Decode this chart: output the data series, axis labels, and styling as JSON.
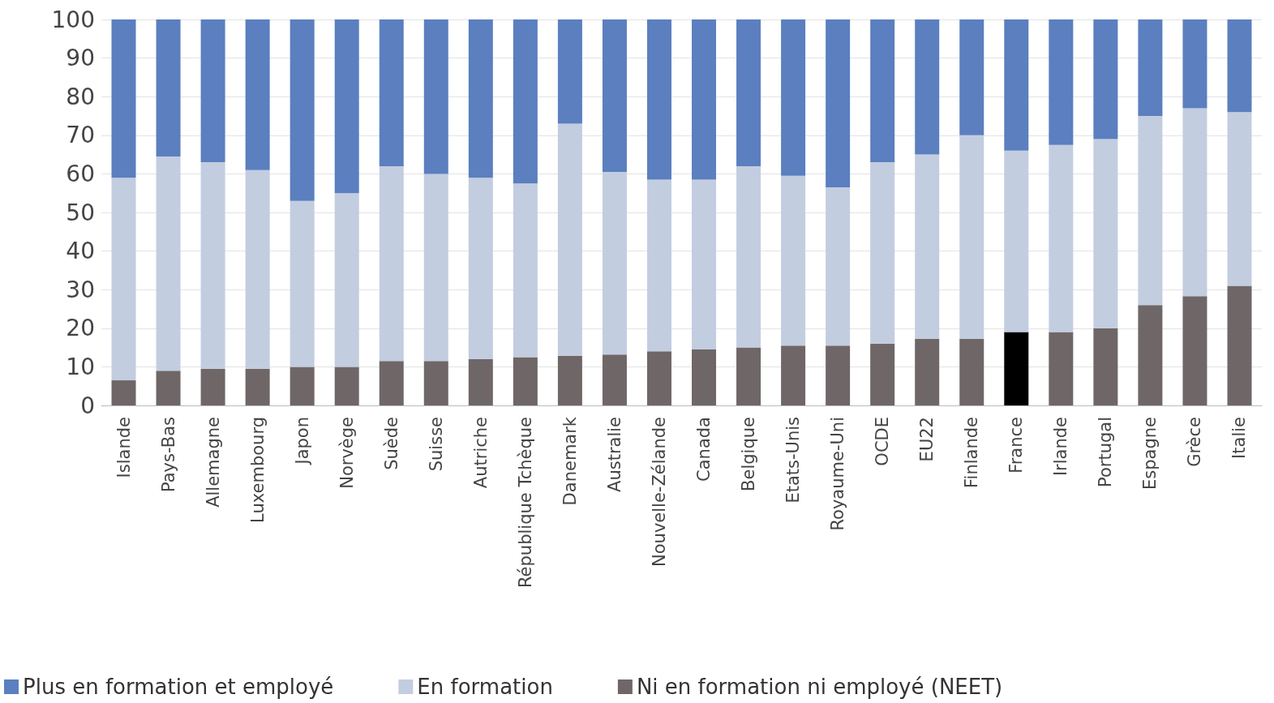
{
  "chart_data": {
    "type": "bar",
    "stacked": true,
    "categories": [
      "Islande",
      "Pays-Bas",
      "Allemagne",
      "Luxembourg",
      "Japon",
      "Norvège",
      "Suède",
      "Suisse",
      "Autriche",
      "République Tchèque",
      "Danemark",
      "Australie",
      "Nouvelle-Zélande",
      "Canada",
      "Belgique",
      "Etats-Unis",
      "Royaume-Uni",
      "OCDE",
      "EU22",
      "Finlande",
      "France",
      "Irlande",
      "Portugal",
      "Espagne",
      "Grèce",
      "Italie"
    ],
    "series": [
      {
        "name": "Ni en formation ni employé (NEET)",
        "color": "#6f6667",
        "colors": [
          "#6f6667",
          "#6f6667",
          "#6f6667",
          "#6f6667",
          "#6f6667",
          "#6f6667",
          "#6f6667",
          "#6f6667",
          "#6f6667",
          "#6f6667",
          "#6f6667",
          "#6f6667",
          "#6f6667",
          "#6f6667",
          "#6f6667",
          "#6f6667",
          "#6f6667",
          "#6f6667",
          "#6f6667",
          "#6f6667",
          "#000000",
          "#6f6667",
          "#6f6667",
          "#6f6667",
          "#6f6667",
          "#6f6667"
        ],
        "values": [
          6.5,
          9,
          9.5,
          9.5,
          10,
          10,
          11.5,
          11.5,
          12,
          12.5,
          12.8,
          13.2,
          14,
          14.5,
          15,
          15.5,
          15.5,
          16,
          17.3,
          17.3,
          19,
          19,
          20,
          26,
          28.3,
          31
        ]
      },
      {
        "name": "En formation",
        "color": "#c3cde0",
        "values": [
          52.5,
          55.5,
          53.5,
          51.5,
          43,
          45,
          50.5,
          48.5,
          47,
          45,
          60.2,
          47.3,
          44.5,
          44,
          47,
          44,
          41,
          47,
          47.7,
          52.7,
          47,
          48.5,
          49,
          49,
          48.7,
          45
        ]
      },
      {
        "name": "Plus en formation et employé",
        "color": "#5b7fbf",
        "values": [
          41,
          35.5,
          37,
          39,
          47,
          45,
          38,
          40,
          41,
          42.5,
          27,
          39.5,
          41.5,
          41.5,
          38,
          40.5,
          43.5,
          37,
          35,
          30,
          34,
          32.5,
          31,
          25,
          23,
          24
        ]
      }
    ],
    "ylim": [
      0,
      100
    ],
    "yticks": [
      0,
      10,
      20,
      30,
      40,
      50,
      60,
      70,
      80,
      90,
      100
    ],
    "grid": "y",
    "legend": "bottom left"
  }
}
